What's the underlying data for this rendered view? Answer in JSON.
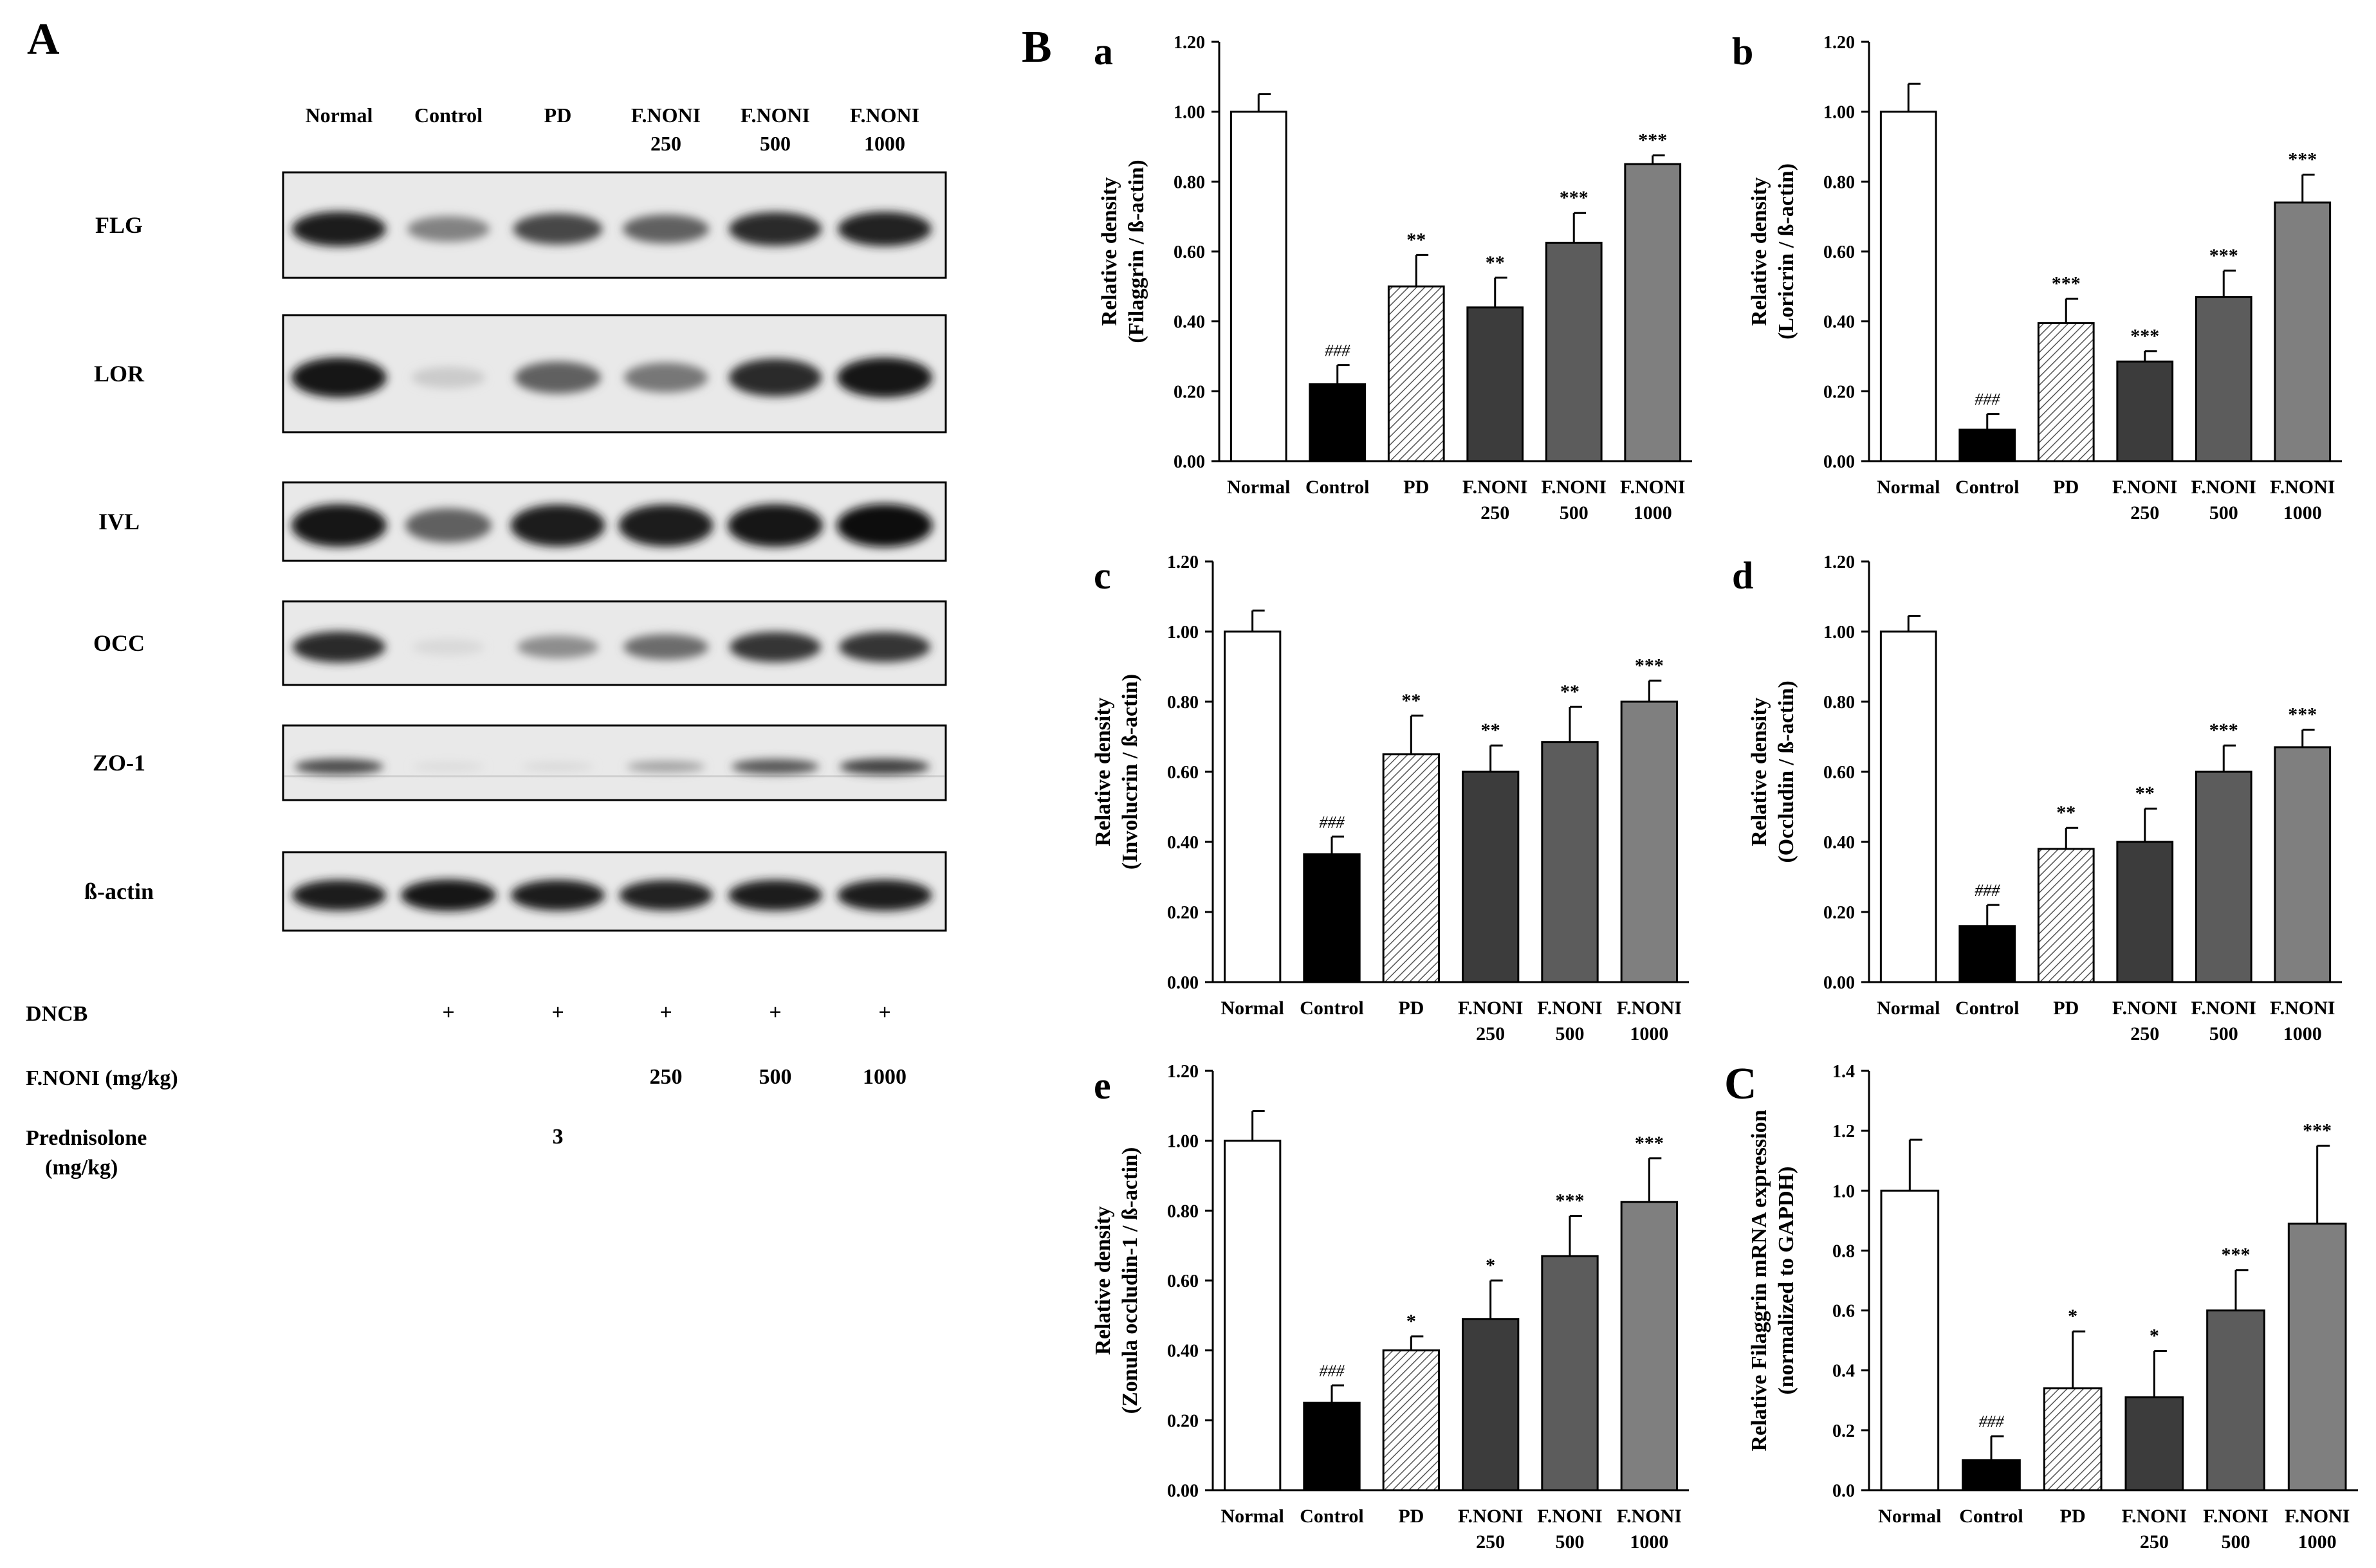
{
  "panel_labels": {
    "A": "A",
    "B": "B",
    "C": "C"
  },
  "western_blot": {
    "lanes": [
      [
        "Normal"
      ],
      [
        "Control"
      ],
      [
        "PD"
      ],
      [
        "F.NONI",
        "250"
      ],
      [
        "F.NONI",
        "500"
      ],
      [
        "F.NONI",
        "1000"
      ]
    ],
    "proteins": [
      {
        "name": "FLG",
        "intensity": [
          0.9,
          0.45,
          0.72,
          0.6,
          0.85,
          0.88
        ]
      },
      {
        "name": "LOR",
        "intensity": [
          0.95,
          0.12,
          0.6,
          0.5,
          0.85,
          0.95
        ]
      },
      {
        "name": "IVL",
        "intensity": [
          0.95,
          0.6,
          0.92,
          0.92,
          0.95,
          0.97
        ]
      },
      {
        "name": "OCC",
        "intensity": [
          0.85,
          0.06,
          0.4,
          0.55,
          0.8,
          0.8
        ]
      },
      {
        "name": "ZO-1",
        "intensity": [
          0.7,
          0.05,
          0.06,
          0.3,
          0.65,
          0.75
        ]
      },
      {
        "name": "ß-actin",
        "intensity": [
          0.9,
          0.95,
          0.9,
          0.88,
          0.9,
          0.92
        ]
      }
    ],
    "treatment_rows": [
      {
        "label": [
          "DNCB"
        ],
        "values": [
          "",
          "+",
          "+",
          "+",
          "+",
          "+"
        ]
      },
      {
        "label": [
          "F.NONI (mg/kg)"
        ],
        "values": [
          "",
          "",
          "",
          "250",
          "500",
          "1000"
        ]
      },
      {
        "label": [
          "Prednisolone",
          "(mg/kg)"
        ],
        "values": [
          "",
          "",
          "3",
          "",
          "",
          ""
        ]
      }
    ]
  },
  "colors": {
    "normal": "#ffffff",
    "control": "#000000",
    "pd_pattern": "#555555",
    "noni250": "#3c3c3c",
    "noni500": "#5c5c5c",
    "noni1000": "#7f7f7f"
  },
  "chart_data": [
    {
      "panel": "a",
      "type": "bar",
      "ylabel": [
        "Relative density",
        "(Filaggrin / ß-actin)"
      ],
      "categories": [
        [
          "Normal"
        ],
        [
          "Control"
        ],
        [
          "PD"
        ],
        [
          "F.NONI",
          "250"
        ],
        [
          "F.NONI",
          "500"
        ],
        [
          "F.NONI",
          "1000"
        ]
      ],
      "values": [
        1.0,
        0.22,
        0.5,
        0.44,
        0.625,
        0.85
      ],
      "errors": [
        0.05,
        0.055,
        0.09,
        0.085,
        0.085,
        0.025
      ],
      "annotations": [
        "",
        "###",
        "**",
        "**",
        "***",
        "***"
      ],
      "ylim": [
        0,
        1.2
      ],
      "yticks": [
        0,
        0.2,
        0.4,
        0.6,
        0.8,
        1.0,
        1.2
      ],
      "tick_decimals": 2
    },
    {
      "panel": "b",
      "type": "bar",
      "ylabel": [
        "Relative density",
        "(Loricrin / ß-actin)"
      ],
      "categories": [
        [
          "Normal"
        ],
        [
          "Control"
        ],
        [
          "PD"
        ],
        [
          "F.NONI",
          "250"
        ],
        [
          "F.NONI",
          "500"
        ],
        [
          "F.NONI",
          "1000"
        ]
      ],
      "values": [
        1.0,
        0.09,
        0.395,
        0.285,
        0.47,
        0.74
      ],
      "errors": [
        0.08,
        0.045,
        0.07,
        0.03,
        0.075,
        0.08
      ],
      "annotations": [
        "",
        "###",
        "***",
        "***",
        "***",
        "***"
      ],
      "ylim": [
        0,
        1.2
      ],
      "yticks": [
        0,
        0.2,
        0.4,
        0.6,
        0.8,
        1.0,
        1.2
      ],
      "tick_decimals": 2
    },
    {
      "panel": "c",
      "type": "bar",
      "ylabel": [
        "Relative density",
        "(Involucrin / ß-actin)"
      ],
      "categories": [
        [
          "Normal"
        ],
        [
          "Control"
        ],
        [
          "PD"
        ],
        [
          "F.NONI",
          "250"
        ],
        [
          "F.NONI",
          "500"
        ],
        [
          "F.NONI",
          "1000"
        ]
      ],
      "values": [
        1.0,
        0.365,
        0.65,
        0.6,
        0.685,
        0.8
      ],
      "errors": [
        0.06,
        0.05,
        0.11,
        0.075,
        0.1,
        0.06
      ],
      "annotations": [
        "",
        "###",
        "**",
        "**",
        "**",
        "***"
      ],
      "ylim": [
        0,
        1.2
      ],
      "yticks": [
        0,
        0.2,
        0.4,
        0.6,
        0.8,
        1.0,
        1.2
      ],
      "tick_decimals": 2
    },
    {
      "panel": "d",
      "type": "bar",
      "ylabel": [
        "Relative density",
        "(Occludin / ß-actin)"
      ],
      "categories": [
        [
          "Normal"
        ],
        [
          "Control"
        ],
        [
          "PD"
        ],
        [
          "F.NONI",
          "250"
        ],
        [
          "F.NONI",
          "500"
        ],
        [
          "F.NONI",
          "1000"
        ]
      ],
      "values": [
        1.0,
        0.16,
        0.38,
        0.4,
        0.6,
        0.67
      ],
      "errors": [
        0.045,
        0.06,
        0.06,
        0.095,
        0.075,
        0.05
      ],
      "annotations": [
        "",
        "###",
        "**",
        "**",
        "***",
        "***"
      ],
      "ylim": [
        0,
        1.2
      ],
      "yticks": [
        0,
        0.2,
        0.4,
        0.6,
        0.8,
        1.0,
        1.2
      ],
      "tick_decimals": 2
    },
    {
      "panel": "e",
      "type": "bar",
      "ylabel": [
        "Relative density",
        "(Zonula occludin-1 / ß-actin)"
      ],
      "categories": [
        [
          "Normal"
        ],
        [
          "Control"
        ],
        [
          "PD"
        ],
        [
          "F.NONI",
          "250"
        ],
        [
          "F.NONI",
          "500"
        ],
        [
          "F.NONI",
          "1000"
        ]
      ],
      "values": [
        1.0,
        0.25,
        0.4,
        0.49,
        0.67,
        0.825
      ],
      "errors": [
        0.085,
        0.05,
        0.04,
        0.11,
        0.115,
        0.125
      ],
      "annotations": [
        "",
        "###",
        "*",
        "*",
        "***",
        "***"
      ],
      "ylim": [
        0,
        1.2
      ],
      "yticks": [
        0,
        0.2,
        0.4,
        0.6,
        0.8,
        1.0,
        1.2
      ],
      "tick_decimals": 2
    },
    {
      "panel": "",
      "type": "bar",
      "ylabel": [
        "Relative Filaggrin mRNA expression",
        "(normalized to GAPDH)"
      ],
      "categories": [
        [
          "Normal"
        ],
        [
          "Control"
        ],
        [
          "PD"
        ],
        [
          "F.NONI",
          "250"
        ],
        [
          "F.NONI",
          "500"
        ],
        [
          "F.NONI",
          "1000"
        ]
      ],
      "values": [
        1.0,
        0.1,
        0.34,
        0.31,
        0.6,
        0.89
      ],
      "errors": [
        0.17,
        0.08,
        0.19,
        0.155,
        0.135,
        0.26
      ],
      "annotations": [
        "",
        "###",
        "*",
        "*",
        "***",
        "***"
      ],
      "ylim": [
        0,
        1.4
      ],
      "yticks": [
        0,
        0.2,
        0.4,
        0.6,
        0.8,
        1.0,
        1.2,
        1.4
      ],
      "tick_decimals": 1
    }
  ]
}
